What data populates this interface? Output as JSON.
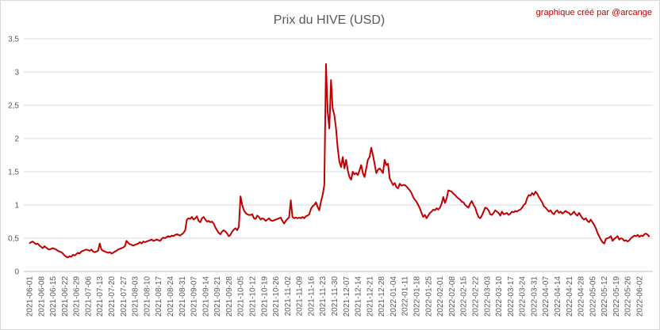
{
  "chart_data": {
    "type": "line",
    "title": "Prix du HIVE (USD)",
    "annotation": "graphique créé par @arcange",
    "color": "#c00000",
    "grid": true,
    "ylim": [
      0,
      3.5
    ],
    "yticks": [
      0,
      {
        "value": 0.5,
        "label": "0,5"
      },
      1,
      {
        "value": 1.5,
        "label": "1,5"
      },
      2,
      {
        "value": 2.5,
        "label": "2,5"
      },
      3,
      {
        "value": 3.5,
        "label": "3,5"
      }
    ],
    "categories": [
      "2021-06-01",
      null,
      null,
      null,
      null,
      null,
      null,
      "2021-06-08",
      null,
      null,
      null,
      null,
      null,
      null,
      "2021-06-15",
      null,
      null,
      null,
      null,
      null,
      null,
      "2021-06-22",
      null,
      null,
      null,
      null,
      null,
      null,
      "2021-06-29",
      null,
      null,
      null,
      null,
      null,
      null,
      "2021-07-06",
      null,
      null,
      null,
      null,
      null,
      null,
      "2021-07-13",
      null,
      null,
      null,
      null,
      null,
      null,
      "2021-07-20",
      null,
      null,
      null,
      null,
      null,
      null,
      "2021-07-27",
      null,
      null,
      null,
      null,
      null,
      null,
      "2021-08-03",
      null,
      null,
      null,
      null,
      null,
      null,
      "2021-08-10",
      null,
      null,
      null,
      null,
      null,
      null,
      "2021-08-17",
      null,
      null,
      null,
      null,
      null,
      null,
      "2021-08-24",
      null,
      null,
      null,
      null,
      null,
      null,
      "2021-08-31",
      null,
      null,
      null,
      null,
      null,
      null,
      "2021-09-07",
      null,
      null,
      null,
      null,
      null,
      null,
      "2021-09-14",
      null,
      null,
      null,
      null,
      null,
      null,
      "2021-09-21",
      null,
      null,
      null,
      null,
      null,
      null,
      "2021-09-28",
      null,
      null,
      null,
      null,
      null,
      null,
      "2021-10-05",
      null,
      null,
      null,
      null,
      null,
      null,
      "2021-10-12",
      null,
      null,
      null,
      null,
      null,
      null,
      "2021-10-19",
      null,
      null,
      null,
      null,
      null,
      null,
      "2021-10-26",
      null,
      null,
      null,
      null,
      null,
      null,
      "2021-11-02",
      null,
      null,
      null,
      null,
      null,
      null,
      "2021-11-09",
      null,
      null,
      null,
      null,
      null,
      null,
      "2021-11-16",
      null,
      null,
      null,
      null,
      null,
      null,
      "2021-11-23",
      null,
      null,
      null,
      null,
      null,
      null,
      "2021-11-30",
      null,
      null,
      null,
      null,
      null,
      null,
      "2021-12-07",
      null,
      null,
      null,
      null,
      null,
      null,
      "2021-12-14",
      null,
      null,
      null,
      null,
      null,
      null,
      "2021-12-21",
      null,
      null,
      null,
      null,
      null,
      null,
      "2021-12-28",
      null,
      null,
      null,
      null,
      null,
      null,
      "2022-01-04",
      null,
      null,
      null,
      null,
      null,
      null,
      "2022-01-11",
      null,
      null,
      null,
      null,
      null,
      null,
      "2022-01-18",
      null,
      null,
      null,
      null,
      null,
      null,
      "2022-01-25",
      null,
      null,
      null,
      null,
      null,
      null,
      "2022-02-01",
      null,
      null,
      null,
      null,
      null,
      null,
      "2022-02-08",
      null,
      null,
      null,
      null,
      null,
      null,
      "2022-02-15",
      null,
      null,
      null,
      null,
      null,
      null,
      "2022-02-22",
      null,
      null,
      null,
      null,
      null,
      null,
      "2022-03-03",
      null,
      null,
      null,
      null,
      null,
      null,
      "2022-03-10",
      null,
      null,
      null,
      null,
      null,
      null,
      "2022-03-17",
      null,
      null,
      null,
      null,
      null,
      null,
      "2022-03-24",
      null,
      null,
      null,
      null,
      null,
      null,
      "2022-03-31",
      null,
      null,
      null,
      null,
      null,
      null,
      "2022-04-07",
      null,
      null,
      null,
      null,
      null,
      null,
      "2022-04-14",
      null,
      null,
      null,
      null,
      null,
      null,
      "2022-04-21",
      null,
      null,
      null,
      null,
      null,
      null,
      "2022-04-28",
      null,
      null,
      null,
      null,
      null,
      null,
      "2022-05-05",
      null,
      null,
      null,
      null,
      null,
      null,
      "2022-05-12",
      null,
      null,
      null,
      null,
      null,
      null,
      "2022-05-19",
      null,
      null,
      null,
      null,
      null,
      null,
      "2022-05-26",
      null,
      null,
      null,
      null,
      null,
      null,
      "2022-06-02",
      null,
      null,
      null,
      null,
      null,
      null
    ],
    "values": [
      0.42,
      0.44,
      0.45,
      0.43,
      0.41,
      0.42,
      0.39,
      0.37,
      0.35,
      0.38,
      0.36,
      0.34,
      0.33,
      0.34,
      0.35,
      0.34,
      0.33,
      0.31,
      0.3,
      0.29,
      0.27,
      0.24,
      0.22,
      0.21,
      0.23,
      0.22,
      0.25,
      0.24,
      0.26,
      0.28,
      0.27,
      0.3,
      0.31,
      0.32,
      0.33,
      0.32,
      0.31,
      0.33,
      0.3,
      0.29,
      0.3,
      0.31,
      0.42,
      0.33,
      0.31,
      0.3,
      0.29,
      0.28,
      0.29,
      0.27,
      0.28,
      0.3,
      0.31,
      0.33,
      0.34,
      0.35,
      0.36,
      0.38,
      0.46,
      0.43,
      0.41,
      0.4,
      0.39,
      0.4,
      0.41,
      0.42,
      0.44,
      0.42,
      0.45,
      0.44,
      0.45,
      0.46,
      0.47,
      0.48,
      0.46,
      0.47,
      0.48,
      0.47,
      0.46,
      0.49,
      0.51,
      0.5,
      0.52,
      0.53,
      0.52,
      0.54,
      0.53,
      0.55,
      0.56,
      0.55,
      0.54,
      0.56,
      0.58,
      0.62,
      0.78,
      0.8,
      0.79,
      0.82,
      0.78,
      0.8,
      0.83,
      0.76,
      0.74,
      0.8,
      0.82,
      0.78,
      0.75,
      0.76,
      0.74,
      0.75,
      0.72,
      0.66,
      0.62,
      0.58,
      0.56,
      0.6,
      0.62,
      0.6,
      0.57,
      0.53,
      0.55,
      0.6,
      0.63,
      0.65,
      0.62,
      0.67,
      1.13,
      1.0,
      0.92,
      0.88,
      0.86,
      0.85,
      0.85,
      0.86,
      0.8,
      0.79,
      0.84,
      0.82,
      0.78,
      0.8,
      0.79,
      0.76,
      0.78,
      0.8,
      0.77,
      0.76,
      0.77,
      0.78,
      0.79,
      0.8,
      0.81,
      0.76,
      0.72,
      0.76,
      0.79,
      0.81,
      1.07,
      0.82,
      0.8,
      0.81,
      0.8,
      0.81,
      0.8,
      0.82,
      0.8,
      0.83,
      0.84,
      0.86,
      0.94,
      0.98,
      1.0,
      1.04,
      0.97,
      0.92,
      1.05,
      1.15,
      1.3,
      3.12,
      2.4,
      2.15,
      2.88,
      2.45,
      2.35,
      2.15,
      1.85,
      1.65,
      1.57,
      1.72,
      1.55,
      1.68,
      1.52,
      1.42,
      1.38,
      1.5,
      1.46,
      1.48,
      1.45,
      1.52,
      1.6,
      1.48,
      1.42,
      1.55,
      1.68,
      1.72,
      1.86,
      1.75,
      1.62,
      1.48,
      1.53,
      1.55,
      1.52,
      1.48,
      1.68,
      1.6,
      1.62,
      1.4,
      1.35,
      1.3,
      1.33,
      1.27,
      1.25,
      1.32,
      1.29,
      1.3,
      1.3,
      1.28,
      1.25,
      1.22,
      1.18,
      1.12,
      1.08,
      1.05,
      1.0,
      0.95,
      0.88,
      0.82,
      0.85,
      0.8,
      0.84,
      0.88,
      0.9,
      0.93,
      0.92,
      0.95,
      0.93,
      0.96,
      1.02,
      1.12,
      1.03,
      1.1,
      1.22,
      1.21,
      1.2,
      1.17,
      1.15,
      1.12,
      1.1,
      1.08,
      1.05,
      1.04,
      1.0,
      0.98,
      0.96,
      1.02,
      1.06,
      1.0,
      0.96,
      0.88,
      0.82,
      0.8,
      0.84,
      0.9,
      0.96,
      0.95,
      0.92,
      0.86,
      0.85,
      0.88,
      0.92,
      0.9,
      0.88,
      0.84,
      0.9,
      0.86,
      0.87,
      0.88,
      0.85,
      0.87,
      0.9,
      0.89,
      0.91,
      0.9,
      0.92,
      0.93,
      0.96,
      1.0,
      1.02,
      1.1,
      1.15,
      1.14,
      1.18,
      1.15,
      1.2,
      1.17,
      1.12,
      1.08,
      1.04,
      0.98,
      0.96,
      0.93,
      0.9,
      0.92,
      0.88,
      0.86,
      0.9,
      0.92,
      0.88,
      0.9,
      0.87,
      0.89,
      0.91,
      0.89,
      0.88,
      0.85,
      0.87,
      0.9,
      0.86,
      0.84,
      0.88,
      0.84,
      0.8,
      0.78,
      0.8,
      0.76,
      0.74,
      0.78,
      0.74,
      0.7,
      0.65,
      0.58,
      0.53,
      0.48,
      0.44,
      0.42,
      0.49,
      0.5,
      0.51,
      0.53,
      0.46,
      0.49,
      0.51,
      0.53,
      0.48,
      0.5,
      0.49,
      0.46,
      0.47,
      0.45,
      0.47,
      0.5,
      0.52,
      0.54,
      0.53,
      0.55,
      0.52,
      0.54,
      0.53,
      0.56,
      0.57,
      0.55,
      0.52
    ]
  }
}
